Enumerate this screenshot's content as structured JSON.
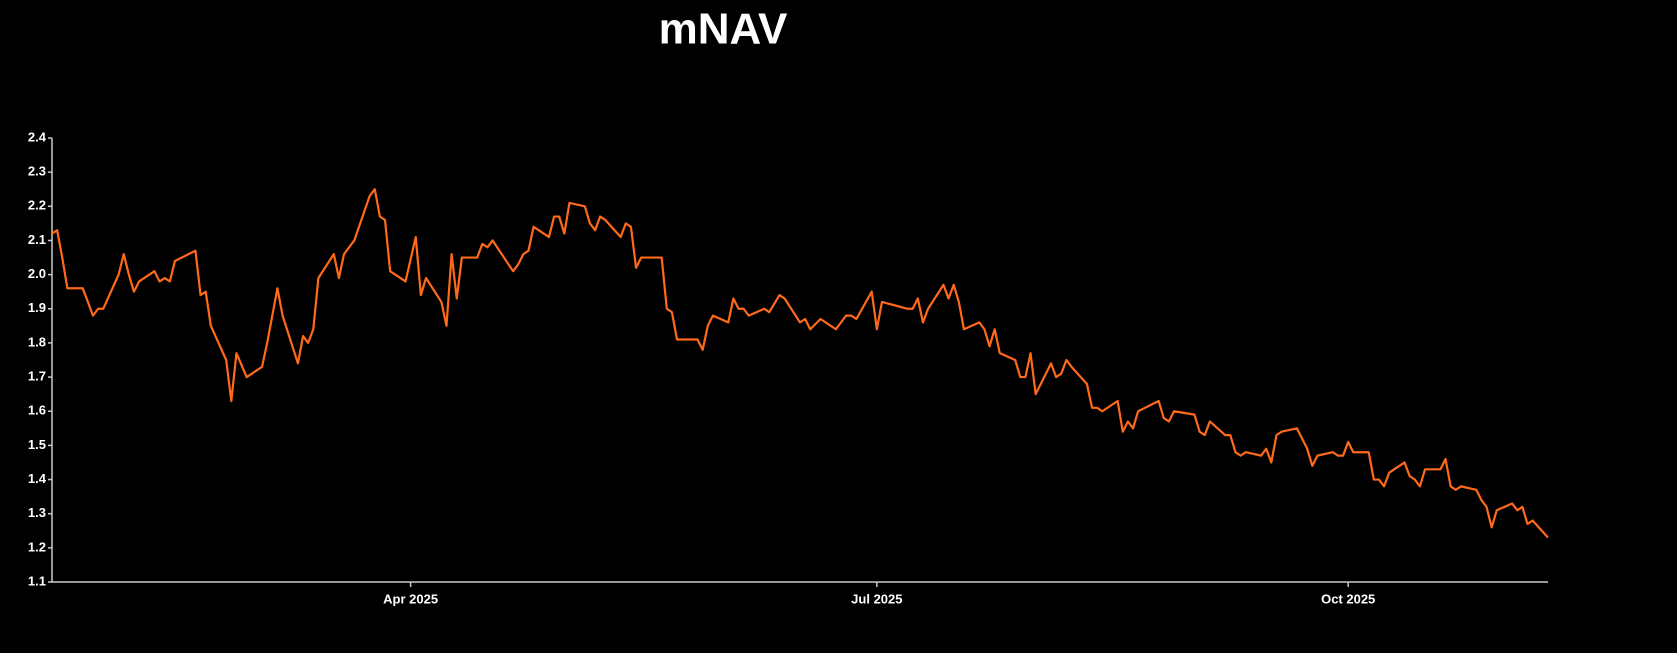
{
  "chart_data": {
    "type": "line",
    "title": "mNAV",
    "x": [
      0,
      1,
      2,
      3,
      6,
      8,
      9,
      10,
      13,
      14,
      15,
      16,
      17,
      20,
      21,
      22,
      23,
      24,
      28,
      29,
      30,
      31,
      34,
      35,
      36,
      38,
      41,
      42,
      44,
      45,
      48,
      49,
      50,
      51,
      52,
      55,
      56,
      57,
      59,
      62,
      63,
      64,
      65,
      66,
      69,
      71,
      72,
      73,
      76,
      77,
      78,
      79,
      80,
      83,
      84,
      85,
      86,
      90,
      91,
      92,
      93,
      94,
      97,
      98,
      99,
      100,
      101,
      104,
      105,
      106,
      107,
      108,
      111,
      112,
      113,
      114,
      115,
      119,
      120,
      121,
      122,
      126,
      127,
      128,
      129,
      132,
      133,
      134,
      135,
      136,
      139,
      140,
      142,
      143,
      146,
      147,
      148,
      150,
      153,
      155,
      156,
      157,
      160,
      161,
      162,
      167,
      168,
      169,
      170,
      171,
      174,
      175,
      176,
      177,
      178,
      181,
      182,
      183,
      184,
      185,
      188,
      189,
      190,
      191,
      192,
      195,
      196,
      197,
      198,
      199,
      202,
      203,
      204,
      205,
      208,
      209,
      210,
      211,
      212,
      216,
      217,
      218,
      219,
      223,
      224,
      225,
      226,
      229,
      230,
      231,
      232,
      233,
      236,
      237,
      238,
      239,
      240,
      243,
      245,
      246,
      247,
      250,
      251,
      252,
      253,
      254,
      257,
      258,
      259,
      260,
      261,
      264,
      265,
      266,
      267,
      268,
      271,
      272,
      273,
      274,
      275,
      278,
      279,
      280,
      281,
      282,
      285,
      286,
      287,
      288,
      289,
      292
    ],
    "series": [
      {
        "name": "mNAV",
        "color": "#ff6a1a",
        "values": [
          2.12,
          2.13,
          2.05,
          1.96,
          1.96,
          1.88,
          1.9,
          1.9,
          2.0,
          2.06,
          2.0,
          1.95,
          1.98,
          2.01,
          1.98,
          1.99,
          1.98,
          2.04,
          2.07,
          1.94,
          1.95,
          1.85,
          1.75,
          1.63,
          1.77,
          1.7,
          1.73,
          1.8,
          1.96,
          1.88,
          1.74,
          1.82,
          1.8,
          1.84,
          1.99,
          2.06,
          1.99,
          2.06,
          2.1,
          2.23,
          2.25,
          2.17,
          2.16,
          2.01,
          1.98,
          2.11,
          1.94,
          1.99,
          1.92,
          1.85,
          2.06,
          1.93,
          2.05,
          2.05,
          2.09,
          2.08,
          2.1,
          2.01,
          2.03,
          2.06,
          2.07,
          2.14,
          2.11,
          2.17,
          2.17,
          2.12,
          2.21,
          2.2,
          2.15,
          2.13,
          2.17,
          2.16,
          2.11,
          2.15,
          2.14,
          2.02,
          2.05,
          2.05,
          1.9,
          1.89,
          1.81,
          1.81,
          1.78,
          1.85,
          1.88,
          1.86,
          1.93,
          1.9,
          1.9,
          1.88,
          1.9,
          1.89,
          1.94,
          1.93,
          1.86,
          1.87,
          1.84,
          1.87,
          1.84,
          1.88,
          1.88,
          1.87,
          1.95,
          1.84,
          1.92,
          1.9,
          1.9,
          1.93,
          1.86,
          1.9,
          1.97,
          1.93,
          1.97,
          1.92,
          1.84,
          1.86,
          1.84,
          1.79,
          1.84,
          1.77,
          1.75,
          1.7,
          1.7,
          1.77,
          1.65,
          1.74,
          1.7,
          1.71,
          1.75,
          1.73,
          1.68,
          1.61,
          1.61,
          1.6,
          1.63,
          1.54,
          1.57,
          1.55,
          1.6,
          1.63,
          1.58,
          1.57,
          1.6,
          1.59,
          1.54,
          1.53,
          1.57,
          1.53,
          1.53,
          1.48,
          1.47,
          1.48,
          1.47,
          1.49,
          1.45,
          1.53,
          1.54,
          1.55,
          1.49,
          1.44,
          1.47,
          1.48,
          1.47,
          1.47,
          1.51,
          1.48,
          1.48,
          1.4,
          1.4,
          1.38,
          1.42,
          1.45,
          1.41,
          1.4,
          1.38,
          1.43,
          1.43,
          1.46,
          1.38,
          1.37,
          1.38,
          1.37,
          1.34,
          1.32,
          1.26,
          1.31,
          1.33,
          1.31,
          1.32,
          1.27,
          1.28,
          1.23
        ]
      }
    ],
    "xlim": [
      0,
      292
    ],
    "xticks": [
      {
        "value": 70,
        "label": "Apr 2025"
      },
      {
        "value": 161,
        "label": "Jul 2025"
      },
      {
        "value": 253,
        "label": "Oct 2025"
      }
    ],
    "ylim": [
      1.1,
      2.4
    ],
    "yticks": [
      1.1,
      1.2,
      1.3,
      1.4,
      1.5,
      1.6,
      1.7,
      1.8,
      1.9,
      {
        "value": 2,
        "label": "2.0"
      },
      2.1,
      2.2,
      2.3,
      2.4
    ],
    "grid": false
  }
}
